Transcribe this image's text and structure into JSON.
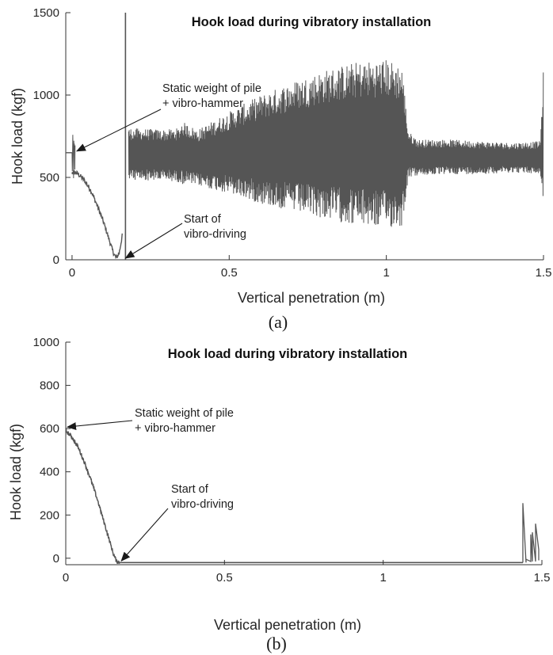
{
  "chart_data": [
    {
      "panel": "(a)",
      "type": "line",
      "title": "Hook load during vibratory installation",
      "xlabel": "Vertical penetration (m)",
      "ylabel": "Hook load (kgf)",
      "xlim": [
        -0.02,
        1.5
      ],
      "ylim": [
        0,
        1500
      ],
      "xticks": [
        0,
        0.5,
        1,
        1.5
      ],
      "xtick_labels": [
        "0",
        "0.5",
        "1",
        "1.5"
      ],
      "yticks": [
        0,
        500,
        1000,
        1500
      ],
      "ytick_labels": [
        "0",
        "500",
        "1000",
        "1500"
      ],
      "grid": false,
      "line_color": "#555555",
      "static_segment": {
        "x": [
          -0.02,
          0.0
        ],
        "y": [
          650,
          650
        ]
      },
      "descent": {
        "x": [
          0.0,
          0.01,
          0.02,
          0.04,
          0.06,
          0.08,
          0.1,
          0.12,
          0.13,
          0.14,
          0.15,
          0.16
        ],
        "y": [
          530,
          530,
          520,
          480,
          420,
          330,
          230,
          110,
          50,
          10,
          40,
          150
        ]
      },
      "pre_descent_noise": {
        "x": [
          0.0,
          0.01
        ],
        "min": 440,
        "max": 760
      },
      "spike": {
        "x": 0.17,
        "min": 0,
        "max": 1500
      },
      "envelope": {
        "x": [
          0.18,
          0.3,
          0.34,
          0.35,
          0.4,
          0.5,
          0.6,
          0.7,
          0.8,
          0.9,
          1.0,
          1.05,
          1.07,
          1.1,
          1.2,
          1.3,
          1.4,
          1.49,
          1.5
        ],
        "upper": [
          800,
          790,
          800,
          840,
          790,
          900,
          1000,
          1080,
          1150,
          1200,
          1220,
          1180,
          780,
          730,
          730,
          720,
          710,
          720,
          1170
        ],
        "lower": [
          480,
          480,
          470,
          460,
          450,
          400,
          340,
          290,
          250,
          210,
          190,
          200,
          500,
          510,
          520,
          520,
          530,
          520,
          330
        ]
      },
      "annotations": [
        {
          "text": [
            "Static weight of pile",
            "+ vibro-hammer"
          ],
          "target": [
            0.01,
            650
          ]
        },
        {
          "text": [
            "Start of",
            "vibro-driving"
          ],
          "target": [
            0.165,
            0
          ]
        }
      ]
    },
    {
      "panel": "(b)",
      "type": "line",
      "title": "Hook load during vibratory installation",
      "xlabel": "Vertical penetration (m)",
      "ylabel": "Hook load (kgf)",
      "xlim": [
        0,
        1.5
      ],
      "ylim": [
        -30,
        1000
      ],
      "xticks": [
        0,
        0.5,
        1,
        1.5
      ],
      "xtick_labels": [
        "0",
        "0.5",
        "1",
        "1.5"
      ],
      "yticks": [
        0,
        200,
        400,
        600,
        800,
        1000
      ],
      "ytick_labels": [
        "0",
        "200",
        "400",
        "600",
        "800",
        "1000"
      ],
      "grid": false,
      "line_color": "#555555",
      "descent": {
        "x": [
          0.0,
          0.02,
          0.04,
          0.06,
          0.08,
          0.1,
          0.12,
          0.14,
          0.15,
          0.16,
          0.17
        ],
        "y": [
          590,
          560,
          510,
          440,
          360,
          270,
          170,
          70,
          20,
          -15,
          -20
        ]
      },
      "baseline": {
        "x": [
          0.17,
          1.44
        ],
        "y": [
          -20,
          -20
        ]
      },
      "tail": {
        "x": [
          1.44,
          1.44,
          1.45,
          1.45,
          1.465,
          1.465,
          1.47,
          1.47,
          1.48,
          1.48,
          1.49,
          1.49
        ],
        "y": [
          -20,
          255,
          -20,
          -5,
          -15,
          110,
          -15,
          120,
          -15,
          160,
          40,
          -10
        ]
      },
      "annotations": [
        {
          "text": [
            "Static weight of pile",
            "+ vibro-hammer"
          ],
          "target": [
            0.0,
            600
          ]
        },
        {
          "text": [
            "Start of",
            "vibro-driving"
          ],
          "target": [
            0.17,
            -20
          ]
        }
      ]
    }
  ]
}
